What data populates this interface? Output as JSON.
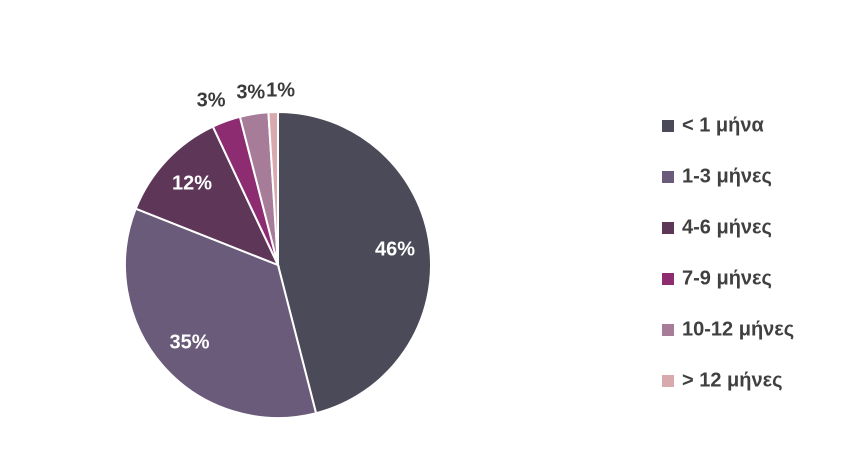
{
  "chart_data": {
    "type": "pie",
    "categories": [
      "< 1 μήνα",
      "1-3 μήνες",
      "4-6 μήνες",
      "7-9 μήνες",
      "10-12 μήνες",
      "> 12 μήνες"
    ],
    "values": [
      46,
      35,
      12,
      3,
      3,
      1
    ],
    "value_labels": [
      "46%",
      "35%",
      "12%",
      "3%",
      "3%",
      "1%"
    ],
    "colors": [
      "#4b4a58",
      "#6b5b7b",
      "#5d3658",
      "#8e2c72",
      "#a67c98",
      "#d8aaae"
    ],
    "legend": "right"
  }
}
